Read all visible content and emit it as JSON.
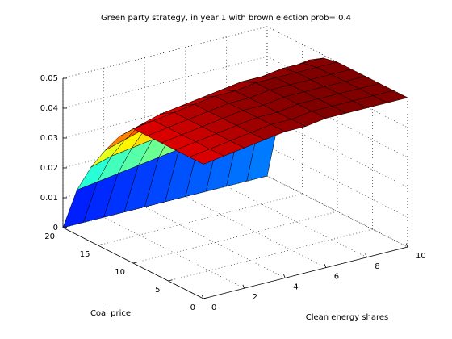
{
  "chart_data": {
    "type": "surface",
    "title": "Green party strategy, in year 1 with brown election prob=   0.4",
    "xlabel": "Clean energy shares",
    "ylabel": "Coal price",
    "x": [
      0,
      1,
      2,
      3,
      4,
      5,
      6,
      7,
      8,
      9,
      10
    ],
    "y": [
      0,
      2,
      4,
      6,
      8,
      10,
      12,
      14,
      16,
      18,
      20
    ],
    "z": [
      [
        0.045,
        0.046,
        0.047,
        0.048,
        0.049,
        0.049,
        0.05,
        0.05,
        0.05,
        0.05,
        0.05
      ],
      [
        0.045,
        0.046,
        0.047,
        0.048,
        0.049,
        0.049,
        0.05,
        0.05,
        0.05,
        0.05,
        0.05
      ],
      [
        0.045,
        0.046,
        0.047,
        0.048,
        0.049,
        0.049,
        0.05,
        0.05,
        0.05,
        0.05,
        0.05
      ],
      [
        0.045,
        0.046,
        0.047,
        0.048,
        0.049,
        0.049,
        0.05,
        0.05,
        0.05,
        0.05,
        0.05
      ],
      [
        0.045,
        0.046,
        0.047,
        0.048,
        0.049,
        0.049,
        0.05,
        0.05,
        0.05,
        0.05,
        0.05
      ],
      [
        0.045,
        0.046,
        0.047,
        0.048,
        0.049,
        0.049,
        0.05,
        0.05,
        0.05,
        0.05,
        0.05
      ],
      [
        0.04,
        0.042,
        0.044,
        0.045,
        0.046,
        0.047,
        0.048,
        0.048,
        0.049,
        0.049,
        0.049
      ],
      [
        0.033,
        0.035,
        0.037,
        0.038,
        0.04,
        0.041,
        0.042,
        0.043,
        0.044,
        0.045,
        0.046
      ],
      [
        0.025,
        0.027,
        0.028,
        0.029,
        0.03,
        0.031,
        0.032,
        0.033,
        0.034,
        0.035,
        0.036
      ],
      [
        0.015,
        0.016,
        0.017,
        0.018,
        0.019,
        0.02,
        0.021,
        0.022,
        0.023,
        0.024,
        0.025
      ],
      [
        0,
        0,
        0,
        0,
        0,
        0,
        0,
        0,
        0,
        0,
        0
      ]
    ],
    "xlim": [
      0,
      10
    ],
    "ylim": [
      0,
      20
    ],
    "zlim": [
      0,
      0.05
    ],
    "xticks": [
      0,
      2,
      4,
      6,
      8,
      10
    ],
    "yticks": [
      0,
      5,
      10,
      15,
      20
    ],
    "zticks": [
      0,
      0.01,
      0.02,
      0.03,
      0.04,
      0.05
    ],
    "colormap": "jet",
    "grid": true
  }
}
